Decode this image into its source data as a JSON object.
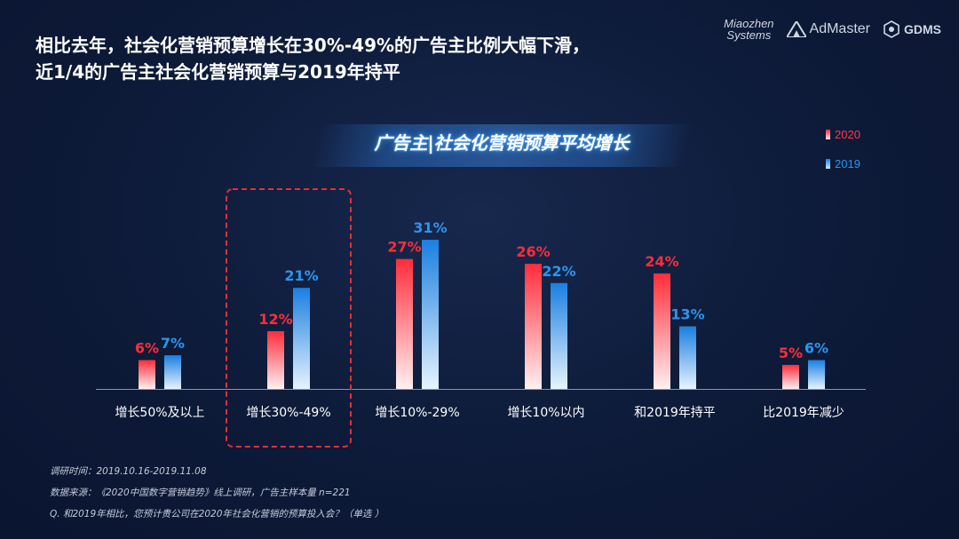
{
  "headline": {
    "line1": "相比去年，社会化营销预算增长在30%-49%的广告主比例大幅下滑，",
    "line2": "近1/4的广告主社会化营销预算与2019年持平"
  },
  "logos": {
    "miaozhen_line1": "Miaozhen",
    "miaozhen_line2": "Systems",
    "admaster": "AdMaster",
    "gdms": "GDMS"
  },
  "colors": {
    "series_2020": "#ff2d3a",
    "series_2019": "#1a7fe0",
    "highlight_border": "#e0303a"
  },
  "chart_data": {
    "type": "bar",
    "title": "广告主|社会化营销预算平均增长",
    "legend_position": "top-right",
    "categories": [
      "增长50%及以上",
      "增长30%-49%",
      "增长10%-29%",
      "增长10%以内",
      "和2019年持平",
      "比2019年减少"
    ],
    "series": [
      {
        "name": "2020",
        "values": [
          6,
          12,
          27,
          26,
          24,
          5
        ],
        "labels": [
          "6%",
          "12%",
          "27%",
          "26%",
          "24%",
          "5%"
        ]
      },
      {
        "name": "2019",
        "values": [
          7,
          21,
          31,
          22,
          13,
          6
        ],
        "labels": [
          "7%",
          "21%",
          "31%",
          "22%",
          "13%",
          "6%"
        ]
      }
    ],
    "ylim": [
      0,
      31
    ],
    "grid": false,
    "highlight_category_index": 1
  },
  "notes": {
    "survey_time": "调研时间：2019.10.16-2019.11.08",
    "source": "数据来源：《2020中国数字营销趋势》线上调研，广告主样本量 n=221",
    "question": "Q. 和2019年相比，您预计贵公司在2020年社会化营销的预算投入会？（单选 ）"
  }
}
